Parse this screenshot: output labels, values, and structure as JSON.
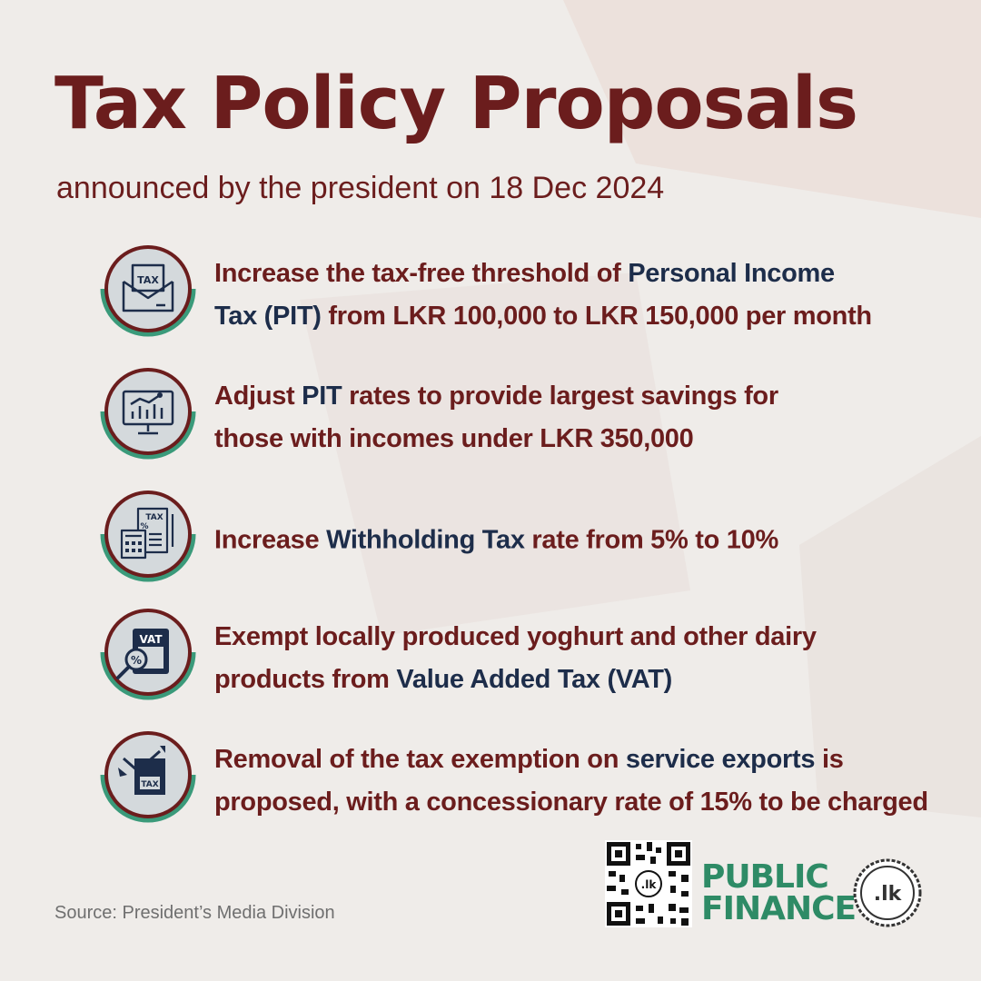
{
  "header": {
    "title": "Tax Policy Proposals",
    "subtitle": "announced by the president on 18 Dec 2024"
  },
  "items": [
    {
      "icon": "tax-envelope-icon",
      "line1": [
        "Increase the tax-free threshold of ",
        "Personal Income"
      ],
      "line2": [
        "Tax (PIT)",
        " from LKR 100,000 to LKR 150,000 per month"
      ]
    },
    {
      "icon": "analytics-monitor-icon",
      "line1": [
        "Adjust ",
        "PIT",
        " rates to provide largest savings for"
      ],
      "line2": "those with incomes under LKR 350,000"
    },
    {
      "icon": "tax-calculator-icon",
      "line1": [
        "Increase ",
        "Withholding Tax",
        " rate from 5% to 10%"
      ]
    },
    {
      "icon": "vat-document-icon",
      "line1": "Exempt locally produced yoghurt and other dairy",
      "line2": [
        "products from ",
        "Value Added Tax (VAT)"
      ]
    },
    {
      "icon": "tax-arrow-down-icon",
      "line1": [
        "Removal of the tax exemption on ",
        "service exports",
        " is"
      ],
      "line2": "proposed, with a concessionary rate of 15% to be charged"
    }
  ],
  "icon_labels": {
    "tax": "TAX",
    "vat": "VAT",
    "pct": "%"
  },
  "footer": {
    "source": "Source:  President’s Media Division",
    "brand_line1": "PUBLIC",
    "brand_line2": "FINANCE",
    "brand_mark": ".lk",
    "qr_center": ".lk"
  },
  "colors": {
    "primary": "#6b1d1d",
    "highlight": "#1d2d4a",
    "accent": "#3a9a7a",
    "brand": "#2e8b66",
    "background": "#efece9"
  }
}
